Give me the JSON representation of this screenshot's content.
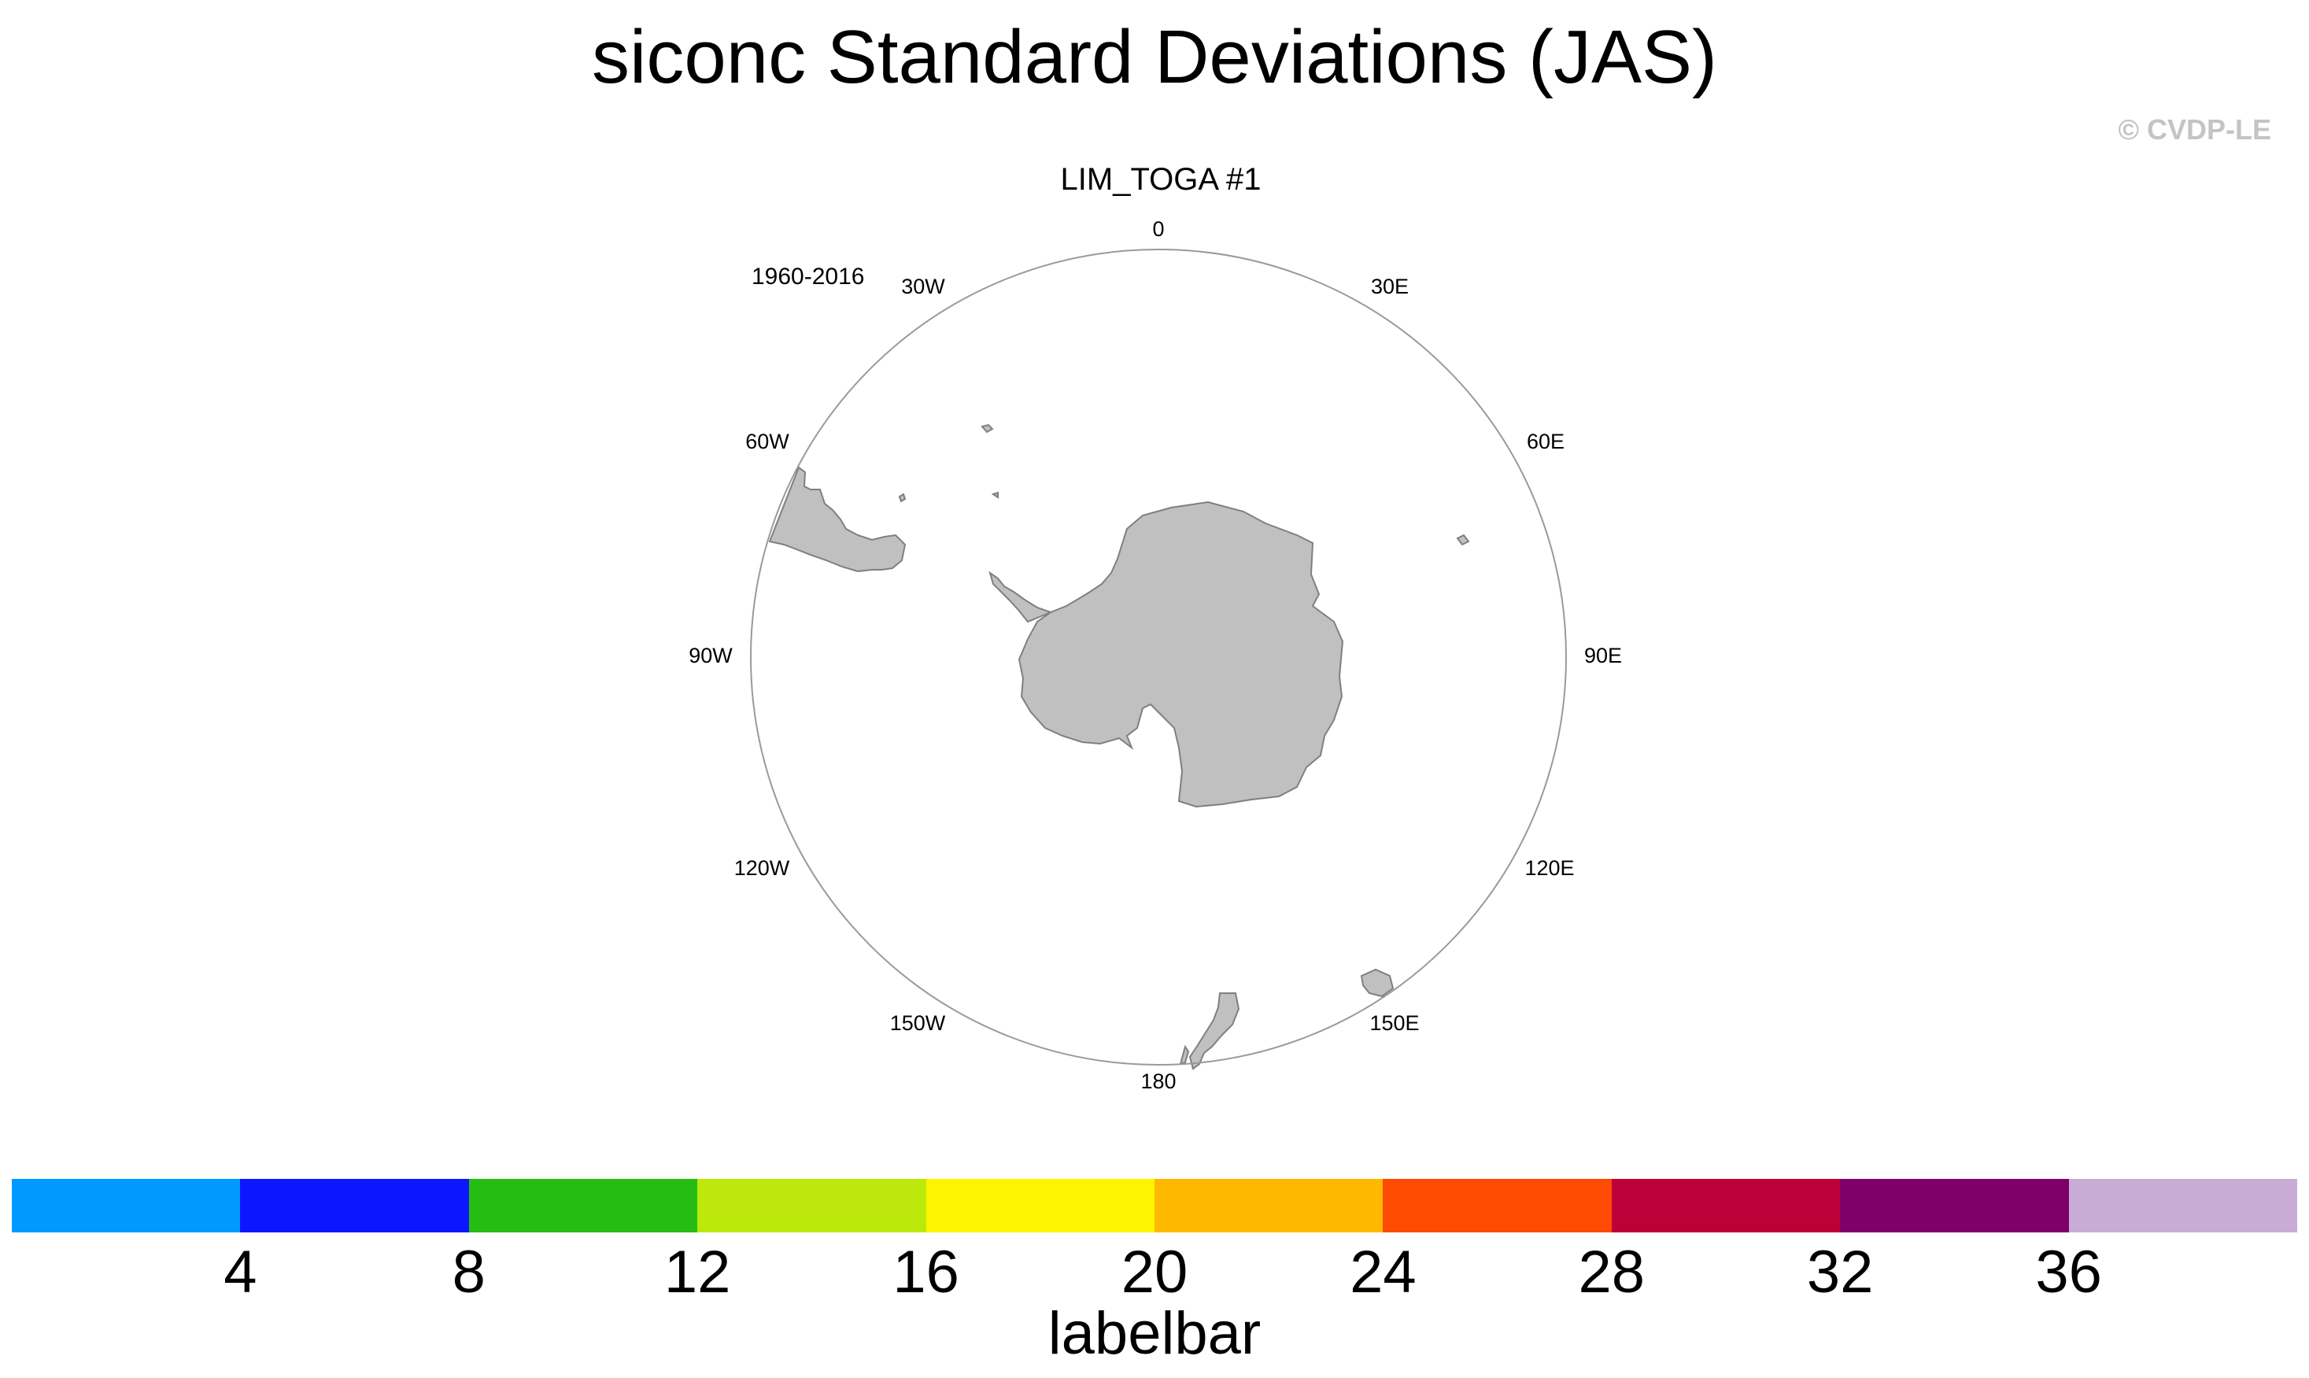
{
  "title": "siconc Standard Deviations (JAS)",
  "copyright": "© CVDP-LE",
  "panel": {
    "title": "LIM_TOGA #1",
    "period": "1960-2016",
    "longitude_labels": [
      "0",
      "30E",
      "60E",
      "90E",
      "120E",
      "150E",
      "180",
      "150W",
      "120W",
      "90W",
      "60W",
      "30W"
    ]
  },
  "colors": {
    "land": "#c0c0c0",
    "coast": "#7f7f7f",
    "frame": "#9a9a9a",
    "copyright": "#c4c4c4"
  },
  "labelbar": {
    "title": "labelbar",
    "ticks": [
      "4",
      "8",
      "12",
      "16",
      "20",
      "24",
      "28",
      "32",
      "36"
    ],
    "colors": [
      "#0099ff",
      "#0d17ff",
      "#26bd12",
      "#bce90b",
      "#fef400",
      "#ffb800",
      "#ff4a04",
      "#bd0038",
      "#7e0068",
      "#c8acd6"
    ]
  }
}
